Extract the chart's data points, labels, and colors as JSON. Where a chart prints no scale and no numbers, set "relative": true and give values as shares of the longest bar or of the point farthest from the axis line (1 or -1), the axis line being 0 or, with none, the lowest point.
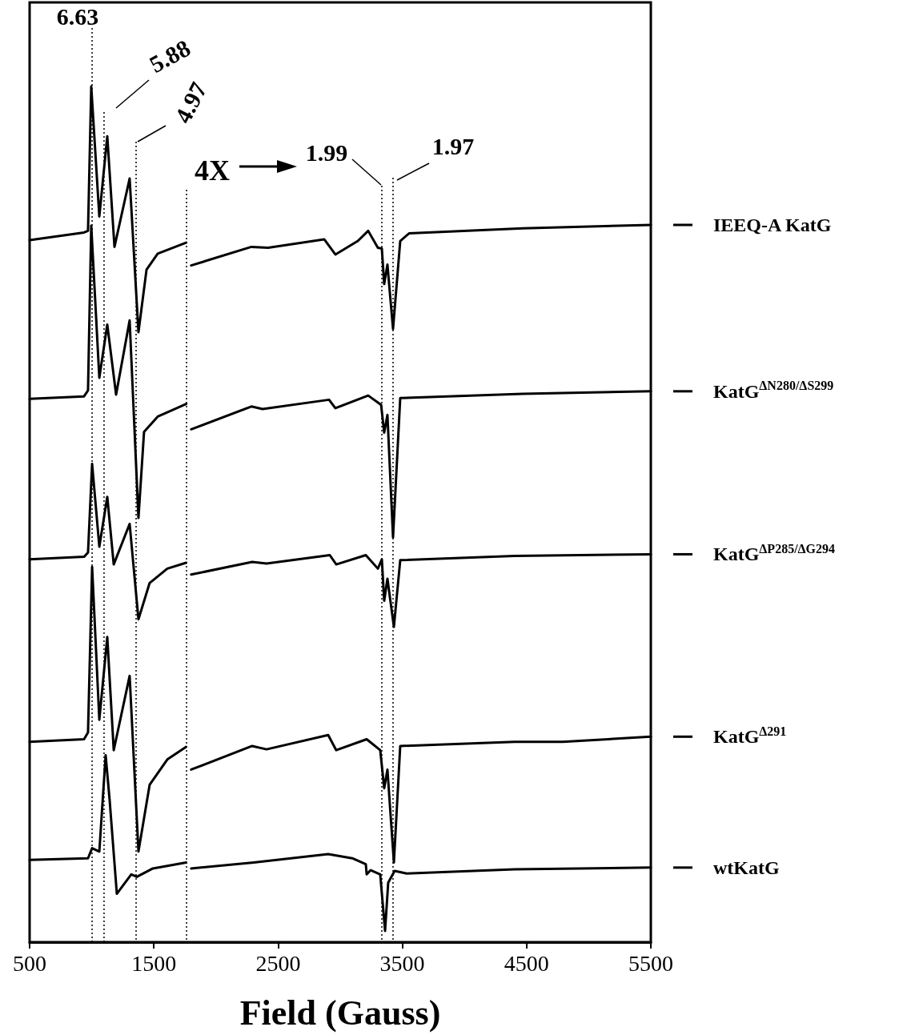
{
  "chart_data": {
    "type": "line",
    "relative": true,
    "xlabel": "Field (Gauss)",
    "xlim": [
      500,
      5500
    ],
    "xticks": [
      500,
      1500,
      2500,
      3500,
      4500,
      5500
    ],
    "grid": false,
    "legend": "right",
    "marker": "none",
    "line_style": "solid",
    "annotations": [
      "6.63",
      "5.88",
      "4.97",
      "4X",
      "1.99",
      "1.97"
    ],
    "ref_lines": [
      {
        "axis": "x",
        "value": 1003,
        "label": null,
        "line_style": "dotted",
        "color": "#000000"
      },
      {
        "axis": "x",
        "value": 1099,
        "label": null,
        "line_style": "dotted",
        "color": "#000000"
      },
      {
        "axis": "x",
        "value": 1357,
        "label": null,
        "line_style": "dotted",
        "color": "#000000"
      },
      {
        "axis": "x",
        "value": 1763,
        "label": null,
        "line_style": "dotted",
        "color": "#000000"
      },
      {
        "axis": "x",
        "value": 3335,
        "label": null,
        "line_style": "dotted",
        "color": "#000000"
      },
      {
        "axis": "x",
        "value": 3425,
        "label": null,
        "line_style": "dotted",
        "color": "#000000"
      }
    ],
    "series": [
      {
        "name": "IEEQ-A KatG",
        "color": "#000000",
        "x": [
          500,
          938,
          970,
          996,
          1061,
          1125,
          1183,
          1305,
          1376,
          1441,
          1531,
          1760,
          1780,
          1800,
          2285,
          2420,
          2871,
          2961,
          3142,
          3225,
          3303,
          3335,
          3354,
          3380,
          3425,
          3483,
          3554,
          4469,
          5500
        ],
        "values": [
          0.818,
          0.827,
          0.829,
          1.0,
          0.846,
          0.941,
          0.81,
          0.891,
          0.709,
          0.783,
          0.802,
          0.815,
          null,
          0.788,
          0.81,
          0.809,
          0.819,
          0.801,
          0.817,
          0.829,
          0.809,
          0.808,
          0.766,
          0.789,
          0.713,
          0.817,
          0.826,
          0.832,
          0.836
        ]
      },
      {
        "name": "KatG$^{ΔN280/ΔS299}$",
        "color": "#000000",
        "x": [
          500,
          938,
          970,
          996,
          1061,
          1125,
          1196,
          1305,
          1376,
          1421,
          1531,
          1760,
          1780,
          1800,
          2285,
          2375,
          2910,
          2961,
          3225,
          3329,
          3354,
          3380,
          3425,
          3483,
          4469,
          5500
        ],
        "values": [
          0.63,
          0.633,
          0.64,
          0.835,
          0.655,
          0.718,
          0.635,
          0.723,
          0.489,
          0.591,
          0.609,
          0.624,
          null,
          0.594,
          0.621,
          0.618,
          0.629,
          0.619,
          0.634,
          0.623,
          0.59,
          0.611,
          0.466,
          0.631,
          0.636,
          0.639
        ]
      },
      {
        "name": "KatG$^{ΔP285/ΔG294}$",
        "color": "#000000",
        "x": [
          500,
          938,
          970,
          1003,
          1061,
          1125,
          1177,
          1305,
          1376,
          1466,
          1608,
          1760,
          1780,
          1800,
          2291,
          2407,
          2916,
          2968,
          3206,
          3303,
          3335,
          3354,
          3380,
          3432,
          3483,
          4404,
          5500
        ],
        "values": [
          0.44,
          0.443,
          0.448,
          0.553,
          0.455,
          0.514,
          0.434,
          0.482,
          0.369,
          0.412,
          0.429,
          0.436,
          null,
          0.422,
          0.437,
          0.435,
          0.445,
          0.434,
          0.445,
          0.429,
          0.44,
          0.391,
          0.417,
          0.36,
          0.439,
          0.444,
          0.446
        ]
      },
      {
        "name": "KatG$^{Δ291}$",
        "color": "#000000",
        "x": [
          500,
          938,
          970,
          1003,
          1061,
          1125,
          1177,
          1305,
          1376,
          1466,
          1608,
          1760,
          1780,
          1800,
          2291,
          2407,
          2903,
          2968,
          3213,
          3322,
          3354,
          3380,
          3432,
          3483,
          4404,
          4791,
          5500
        ],
        "values": [
          0.224,
          0.227,
          0.235,
          0.431,
          0.25,
          0.348,
          0.214,
          0.302,
          0.094,
          0.173,
          0.203,
          0.218,
          null,
          0.191,
          0.219,
          0.215,
          0.232,
          0.214,
          0.227,
          0.214,
          0.169,
          0.191,
          0.081,
          0.219,
          0.224,
          0.224,
          0.23
        ]
      },
      {
        "name": "wtKatG",
        "color": "#000000",
        "x": [
          500,
          970,
          1003,
          1061,
          1112,
          1144,
          1202,
          1318,
          1363,
          1492,
          1760,
          1780,
          1800,
          2304,
          2903,
          3097,
          3206,
          3213,
          3245,
          3322,
          3361,
          3386,
          3438,
          3535,
          4404,
          5500
        ],
        "values": [
          0.084,
          0.086,
          0.098,
          0.094,
          0.208,
          0.155,
          0.044,
          0.067,
          0.064,
          0.074,
          0.081,
          null,
          0.074,
          0.081,
          0.091,
          0.086,
          0.079,
          0.067,
          0.072,
          0.067,
          0.0,
          0.057,
          0.071,
          0.068,
          0.073,
          0.075
        ]
      }
    ]
  }
}
